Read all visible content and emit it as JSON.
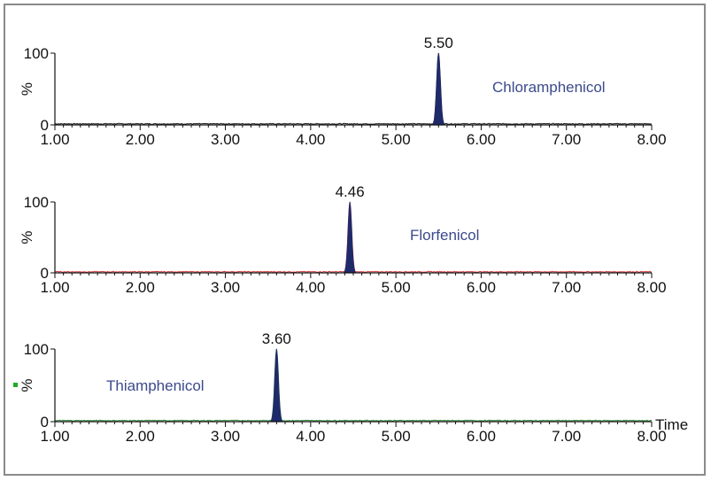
{
  "colors": {
    "axis": "#111111",
    "peak_fill": "#1f2a6b",
    "compound_text": "#3b4a8c",
    "marker": "#22aa22"
  },
  "chart_data": [
    {
      "type": "line",
      "series": [
        {
          "name": "Chloramphenicol",
          "peak_x": 5.5,
          "peak_y": 100,
          "baseline": 1.5,
          "trace_color": "#222222"
        }
      ],
      "ylabel": "%",
      "xlabel": "",
      "xlim": [
        1.0,
        8.0
      ],
      "ylim": [
        0,
        100
      ],
      "x_ticks": [
        "1.00",
        "2.00",
        "3.00",
        "4.00",
        "5.00",
        "6.00",
        "7.00",
        "8.00"
      ],
      "y_ticks": [
        "0",
        "100"
      ],
      "peak_label": "5.50",
      "compound": "Chloramphenicol"
    },
    {
      "type": "line",
      "series": [
        {
          "name": "Florfenicol",
          "peak_x": 4.46,
          "peak_y": 100,
          "baseline": 1.5,
          "trace_color": "#d94040"
        }
      ],
      "ylabel": "%",
      "xlabel": "",
      "xlim": [
        1.0,
        8.0
      ],
      "ylim": [
        0,
        100
      ],
      "x_ticks": [
        "1.00",
        "2.00",
        "3.00",
        "4.00",
        "5.00",
        "6.00",
        "7.00",
        "8.00"
      ],
      "y_ticks": [
        "0",
        "100"
      ],
      "peak_label": "4.46",
      "compound": "Florfenicol"
    },
    {
      "type": "line",
      "series": [
        {
          "name": "Thiamphenicol",
          "peak_x": 3.6,
          "peak_y": 100,
          "baseline": 1.5,
          "trace_color": "#2e8b3a"
        }
      ],
      "ylabel": "%",
      "xlabel": "Time",
      "xlim": [
        1.0,
        8.0
      ],
      "ylim": [
        0,
        100
      ],
      "x_ticks": [
        "1.00",
        "2.00",
        "3.00",
        "4.00",
        "5.00",
        "6.00",
        "7.00",
        "8.00"
      ],
      "y_ticks": [
        "0",
        "100"
      ],
      "peak_label": "3.60",
      "compound": "Thiamphenicol"
    }
  ]
}
